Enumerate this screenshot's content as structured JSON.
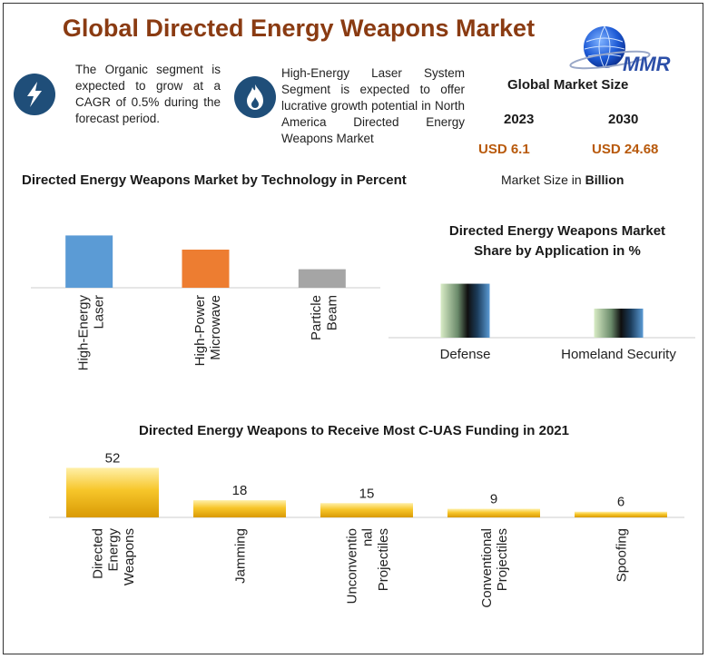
{
  "header": {
    "title": "Global Directed Energy Weapons Market",
    "logo_text": "MMR"
  },
  "highlights": [
    {
      "icon": "lightning-bolt-icon",
      "text": "The Organic segment is expected to grow at a CAGR of 0.5% during the forecast period."
    },
    {
      "icon": "flame-icon",
      "text": "High-Energy Laser System Segment is expected to offer lucrative growth potential in North America Directed Energy Weapons Market"
    }
  ],
  "market_size": {
    "title": "Global Market Size",
    "year_start": "2023",
    "year_end": "2030",
    "value_start": "USD 6.1",
    "value_end": "USD 24.68",
    "unit_prefix": "Market Size in ",
    "unit_bold": "Billion"
  },
  "colors": {
    "title": "#8a3b12",
    "icon_bg": "#1f4e79",
    "usd": "#b8590b",
    "bar_blue": "#5b9bd5",
    "bar_orange": "#ed7d31",
    "bar_gray": "#a5a5a5",
    "bar_gold": "#f5c518"
  },
  "chart_data": [
    {
      "type": "bar",
      "title": "Directed Energy Weapons Market by Technology in Percent",
      "categories": [
        "High-Energy Laser",
        "High-Power Microwave",
        "Particle Beam"
      ],
      "category_lines": [
        [
          "High-Energy",
          "Laser"
        ],
        [
          "High-Power",
          "Microwave"
        ],
        [
          "Particle",
          "Beam"
        ]
      ],
      "values": [
        48,
        35,
        17
      ],
      "bar_colors": [
        "#5b9bd5",
        "#ed7d31",
        "#a5a5a5"
      ],
      "ylim": [
        0,
        60
      ],
      "grid": false
    },
    {
      "type": "bar",
      "title": "Directed Energy Weapons Market Share by Application in %",
      "title_lines": [
        "Directed Energy Weapons Market",
        "Share by Application in %"
      ],
      "categories": [
        "Defense",
        "Homeland Security"
      ],
      "values": [
        65,
        35
      ],
      "ylim": [
        0,
        70
      ],
      "grid": false
    },
    {
      "type": "bar",
      "title": "Directed Energy Weapons to Receive Most C-UAS Funding in 2021",
      "categories": [
        "Directed Energy Weapons",
        "Jamming",
        "Unconventional Projectiles",
        "Conventional Projectiles",
        "Spoofing"
      ],
      "category_lines": [
        [
          "Directed",
          "Energy",
          "Weapons"
        ],
        [
          "Jamming"
        ],
        [
          "Unconventio",
          "nal",
          "Projectiles"
        ],
        [
          "Conventional",
          "Projectiles"
        ],
        [
          "Spoofing"
        ]
      ],
      "values": [
        52,
        18,
        15,
        9,
        6
      ],
      "data_labels": [
        "52",
        "18",
        "15",
        "9",
        "6"
      ],
      "ylim": [
        0,
        60
      ],
      "grid": false
    }
  ]
}
